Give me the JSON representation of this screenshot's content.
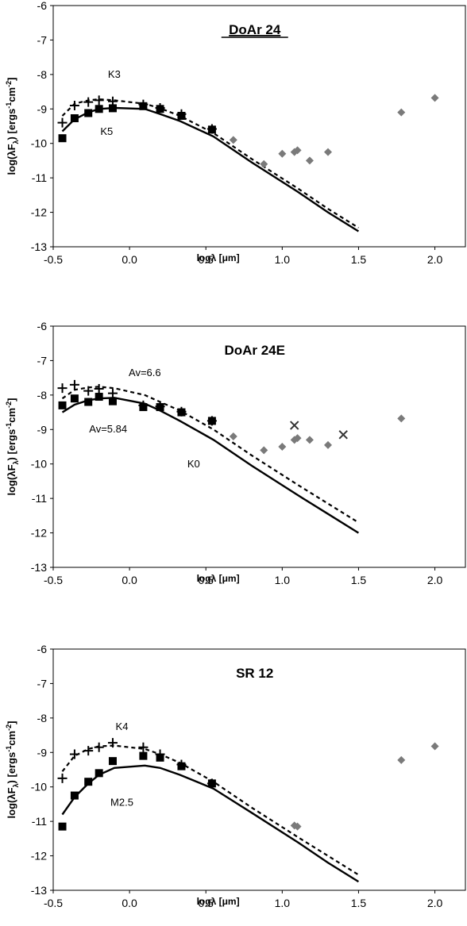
{
  "chart_data": [
    {
      "type": "scatter",
      "title": "DoAr 24",
      "xlabel": "logλ [μm]",
      "ylabel": "log(λF",
      "ylabel_sub": "λ",
      "ylabel_tail": ") [ergs",
      "ylabel_sup1": "-1",
      "ylabel_mid": "cm",
      "ylabel_sup2": "-2",
      "ylabel_end": "]",
      "xlim": [
        -0.5,
        2.2
      ],
      "ylim": [
        -13,
        -6
      ],
      "xticks": [
        "-0.5",
        "0.0",
        "0.5",
        "1.0",
        "1.5",
        "2.0"
      ],
      "xtick_values": [
        -0.5,
        0.0,
        0.5,
        1.0,
        1.5,
        2.0
      ],
      "yticks": [
        "-6",
        "-7",
        "-8",
        "-9",
        "-10",
        "-11",
        "-12",
        "-13"
      ],
      "ytick_values": [
        -6,
        -7,
        -8,
        -9,
        -10,
        -11,
        -12,
        -13
      ],
      "grid": false,
      "series": [
        {
          "kind": "dashed-line",
          "x": [
            -0.44,
            -0.36,
            -0.27,
            -0.2,
            -0.1,
            0.1,
            0.2,
            0.33,
            0.55,
            0.8,
            1.1,
            1.3,
            1.5
          ],
          "y": [
            -9.2,
            -8.85,
            -8.75,
            -8.72,
            -8.75,
            -8.85,
            -8.98,
            -9.2,
            -9.7,
            -10.45,
            -11.3,
            -11.9,
            -12.45
          ]
        },
        {
          "kind": "solid-line",
          "x": [
            -0.44,
            -0.36,
            -0.27,
            -0.2,
            -0.1,
            0.1,
            0.2,
            0.33,
            0.55,
            0.8,
            1.1,
            1.3,
            1.5
          ],
          "y": [
            -9.65,
            -9.3,
            -9.1,
            -9.0,
            -8.97,
            -9.0,
            -9.15,
            -9.35,
            -9.8,
            -10.55,
            -11.4,
            -12.0,
            -12.55
          ]
        },
        {
          "kind": "plus",
          "x": [
            -0.44,
            -0.36,
            -0.27,
            -0.2,
            -0.11,
            0.09,
            0.2,
            0.34,
            0.54
          ],
          "y": [
            -9.4,
            -8.9,
            -8.8,
            -8.75,
            -8.78,
            -8.87,
            -8.97,
            -9.15,
            -9.58
          ]
        },
        {
          "kind": "square",
          "x": [
            -0.44,
            -0.36,
            -0.27,
            -0.2,
            -0.11,
            0.09,
            0.2,
            0.34,
            0.54
          ],
          "y": [
            -9.85,
            -9.27,
            -9.12,
            -9.0,
            -8.98,
            -8.92,
            -9.0,
            -9.2,
            -9.6
          ]
        },
        {
          "kind": "diamond",
          "x": [
            0.68,
            0.88,
            1.0,
            1.08,
            1.1,
            1.18,
            1.3,
            1.78,
            2.0
          ],
          "y": [
            -9.9,
            -10.6,
            -10.3,
            -10.25,
            -10.2,
            -10.5,
            -10.25,
            -9.1,
            -8.68
          ]
        },
        {
          "kind": "cross",
          "x": [],
          "y": []
        }
      ],
      "annotations": [
        {
          "text": "K3",
          "x": -0.1,
          "y": -8.1
        },
        {
          "text": "K5",
          "x": -0.15,
          "y": -9.75
        }
      ]
    },
    {
      "type": "scatter",
      "title": "DoAr 24E",
      "xlabel": "logλ [μm]",
      "ylabel": "log(λF",
      "ylabel_sub": "λ",
      "ylabel_tail": ") [ergs",
      "ylabel_sup1": "-1",
      "ylabel_mid": "cm",
      "ylabel_sup2": "-2",
      "ylabel_end": "]",
      "xlim": [
        -0.5,
        2.2
      ],
      "ylim": [
        -13,
        -6
      ],
      "xticks": [
        "-0.5",
        "0.0",
        "0.5",
        "1.0",
        "1.5",
        "2.0"
      ],
      "xtick_values": [
        -0.5,
        0.0,
        0.5,
        1.0,
        1.5,
        2.0
      ],
      "yticks": [
        "-6",
        "-7",
        "-8",
        "-9",
        "-10",
        "-11",
        "-12",
        "-13"
      ],
      "ytick_values": [
        -6,
        -7,
        -8,
        -9,
        -10,
        -11,
        -12,
        -13
      ],
      "grid": false,
      "series": [
        {
          "kind": "dashed-line",
          "x": [
            -0.44,
            -0.36,
            -0.27,
            -0.2,
            -0.1,
            0.1,
            0.2,
            0.33,
            0.55,
            0.8,
            1.1,
            1.3,
            1.5
          ],
          "y": [
            -8.1,
            -7.85,
            -7.78,
            -7.76,
            -7.8,
            -8.0,
            -8.2,
            -8.45,
            -9.0,
            -9.75,
            -10.6,
            -11.15,
            -11.7
          ]
        },
        {
          "kind": "solid-line",
          "x": [
            -0.44,
            -0.36,
            -0.27,
            -0.2,
            -0.1,
            0.1,
            0.2,
            0.33,
            0.55,
            0.8,
            1.1,
            1.3,
            1.5
          ],
          "y": [
            -8.5,
            -8.28,
            -8.15,
            -8.1,
            -8.08,
            -8.25,
            -8.45,
            -8.75,
            -9.3,
            -10.05,
            -10.9,
            -11.45,
            -12.0
          ]
        },
        {
          "kind": "plus",
          "x": [
            -0.44,
            -0.36,
            -0.27,
            -0.2,
            -0.11,
            0.09,
            0.2,
            0.34,
            0.54
          ],
          "y": [
            -7.8,
            -7.7,
            -7.88,
            -7.82,
            -7.95,
            -8.3,
            -8.33,
            -8.48,
            -8.75
          ]
        },
        {
          "kind": "square",
          "x": [
            -0.44,
            -0.36,
            -0.27,
            -0.2,
            -0.11,
            0.09,
            0.2,
            0.34,
            0.54
          ],
          "y": [
            -8.3,
            -8.1,
            -8.2,
            -8.05,
            -8.18,
            -8.35,
            -8.35,
            -8.5,
            -8.75
          ]
        },
        {
          "kind": "diamond",
          "x": [
            0.68,
            0.88,
            1.0,
            1.08,
            1.1,
            1.18,
            1.3,
            1.78
          ],
          "y": [
            -9.2,
            -9.6,
            -9.5,
            -9.3,
            -9.25,
            -9.3,
            -9.45,
            -8.68
          ]
        },
        {
          "kind": "cross",
          "x": [
            1.08,
            1.4
          ],
          "y": [
            -8.88,
            -9.15
          ]
        }
      ],
      "annotations": [
        {
          "text": "Av=6.6",
          "x": 0.1,
          "y": -7.45
        },
        {
          "text": "Av=5.84",
          "x": -0.14,
          "y": -9.08
        },
        {
          "text": "K0",
          "x": 0.42,
          "y": -10.1
        }
      ]
    },
    {
      "type": "scatter",
      "title": "SR 12",
      "xlabel": "logλ [μm]",
      "ylabel": "log(λF",
      "ylabel_sub": "λ",
      "ylabel_tail": ") [ergs",
      "ylabel_sup1": "-1",
      "ylabel_mid": "cm",
      "ylabel_sup2": "-2",
      "ylabel_end": "]",
      "xlim": [
        -0.5,
        2.2
      ],
      "ylim": [
        -13,
        -6
      ],
      "xticks": [
        "-0.5",
        "0.0",
        "0.5",
        "1.0",
        "1.5",
        "2.0"
      ],
      "xtick_values": [
        -0.5,
        0.0,
        0.5,
        1.0,
        1.5,
        2.0
      ],
      "yticks": [
        "-6",
        "-7",
        "-8",
        "-9",
        "-10",
        "-11",
        "-12",
        "-13"
      ],
      "ytick_values": [
        -6,
        -7,
        -8,
        -9,
        -10,
        -11,
        -12,
        -13
      ],
      "grid": false,
      "series": [
        {
          "kind": "dashed-line",
          "x": [
            -0.44,
            -0.36,
            -0.27,
            -0.2,
            -0.1,
            0.1,
            0.2,
            0.33,
            0.55,
            0.8,
            1.1,
            1.3,
            1.5
          ],
          "y": [
            -9.55,
            -9.1,
            -8.9,
            -8.82,
            -8.8,
            -8.9,
            -9.05,
            -9.3,
            -9.85,
            -10.6,
            -11.45,
            -12.0,
            -12.55
          ]
        },
        {
          "kind": "solid-line",
          "x": [
            -0.44,
            -0.36,
            -0.27,
            -0.2,
            -0.1,
            0.1,
            0.2,
            0.33,
            0.55,
            0.8,
            1.1,
            1.3,
            1.5
          ],
          "y": [
            -10.8,
            -10.3,
            -9.9,
            -9.65,
            -9.45,
            -9.38,
            -9.45,
            -9.65,
            -10.05,
            -10.75,
            -11.6,
            -12.2,
            -12.75
          ]
        },
        {
          "kind": "plus",
          "x": [
            -0.44,
            -0.36,
            -0.27,
            -0.2,
            -0.11,
            0.09,
            0.2,
            0.34,
            0.54
          ],
          "y": [
            -9.75,
            -9.05,
            -8.95,
            -8.85,
            -8.72,
            -8.85,
            -9.05,
            -9.35,
            -9.9
          ]
        },
        {
          "kind": "square",
          "x": [
            -0.44,
            -0.36,
            -0.27,
            -0.2,
            -0.11,
            0.09,
            0.2,
            0.34,
            0.54
          ],
          "y": [
            -11.15,
            -10.25,
            -9.85,
            -9.6,
            -9.25,
            -9.1,
            -9.15,
            -9.4,
            -9.9
          ]
        },
        {
          "kind": "diamond",
          "x": [
            1.08,
            1.1,
            1.78,
            2.0
          ],
          "y": [
            -11.12,
            -11.15,
            -9.22,
            -8.82
          ]
        },
        {
          "kind": "cross",
          "x": [],
          "y": []
        }
      ],
      "annotations": [
        {
          "text": "K4",
          "x": -0.05,
          "y": -8.35
        },
        {
          "text": "M2.5",
          "x": -0.05,
          "y": -10.55
        }
      ]
    }
  ]
}
